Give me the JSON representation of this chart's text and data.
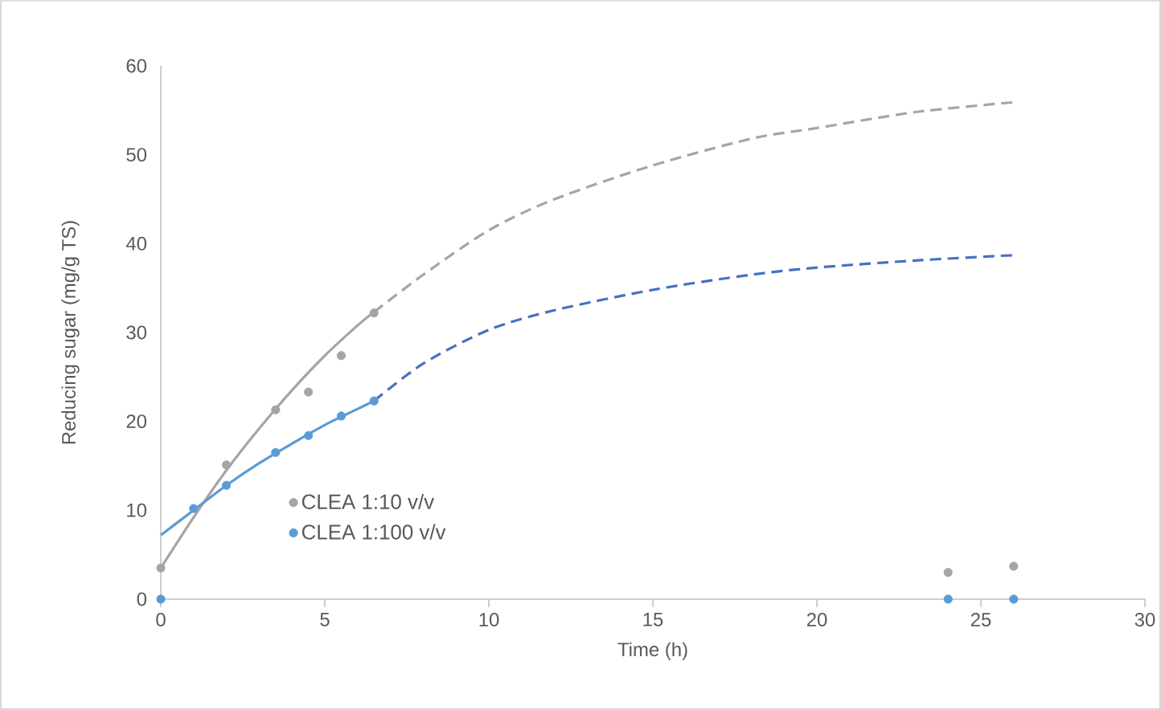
{
  "chart_data": {
    "type": "line",
    "xlabel": "Time (h)",
    "ylabel": "Reducing sugar (mg/g TS)",
    "xlim": [
      0,
      30
    ],
    "xticks": [
      0,
      5,
      10,
      15,
      20,
      25,
      30
    ],
    "ylim": [
      0,
      60
    ],
    "yticks": [
      0,
      10,
      20,
      30,
      40,
      50,
      60
    ],
    "grid": false,
    "legend": "bottom left",
    "series": [
      {
        "name": "CLEA 1:10 v/v",
        "color": "#a5a5a5",
        "type": "scatter",
        "marker": "circle",
        "x": [
          0,
          2,
          3.5,
          4.5,
          5.5,
          6.5,
          24,
          26
        ],
        "values": [
          3.5,
          15.1,
          21.3,
          23.3,
          27.4,
          32.2,
          3,
          3.7
        ]
      },
      {
        "name": "CLEA 1:100 v/v",
        "color": "#5b9bd5",
        "type": "scatter",
        "marker": "circle",
        "x": [
          0,
          1,
          2,
          3.5,
          4.5,
          5.5,
          6.5,
          24,
          26
        ],
        "values": [
          0,
          10.2,
          12.8,
          16.5,
          18.4,
          20.6,
          22.3,
          0,
          0
        ]
      },
      {
        "color": "#a5a5a5",
        "line_style": "solid",
        "marker": "none",
        "x": [
          0,
          1,
          2,
          3,
          4,
          5,
          6,
          6.5
        ],
        "values": [
          3.5,
          9.2,
          14.5,
          19.2,
          23.5,
          27.4,
          30.8,
          32.3
        ]
      },
      {
        "color": "#a5a5a5",
        "line_style": "dashed",
        "marker": "none",
        "x": [
          6.5,
          8,
          10,
          12,
          15,
          18,
          20,
          23,
          26
        ],
        "values": [
          32.3,
          36.5,
          41.5,
          45,
          48.8,
          51.8,
          53,
          54.8,
          55.9
        ]
      },
      {
        "color": "#5b9bd5",
        "line_style": "solid",
        "marker": "none",
        "x": [
          0,
          1,
          2,
          3,
          4,
          5,
          6,
          6.5
        ],
        "values": [
          7.2,
          10,
          12.8,
          15.3,
          17.5,
          19.6,
          21.4,
          22.3
        ]
      },
      {
        "color": "#4472c4",
        "line_style": "dashed",
        "marker": "none",
        "x": [
          6.5,
          8,
          10,
          12,
          15,
          18,
          20,
          23,
          26
        ],
        "values": [
          22.3,
          26.5,
          30.3,
          32.5,
          34.8,
          36.5,
          37.3,
          38.1,
          38.7
        ]
      }
    ]
  }
}
